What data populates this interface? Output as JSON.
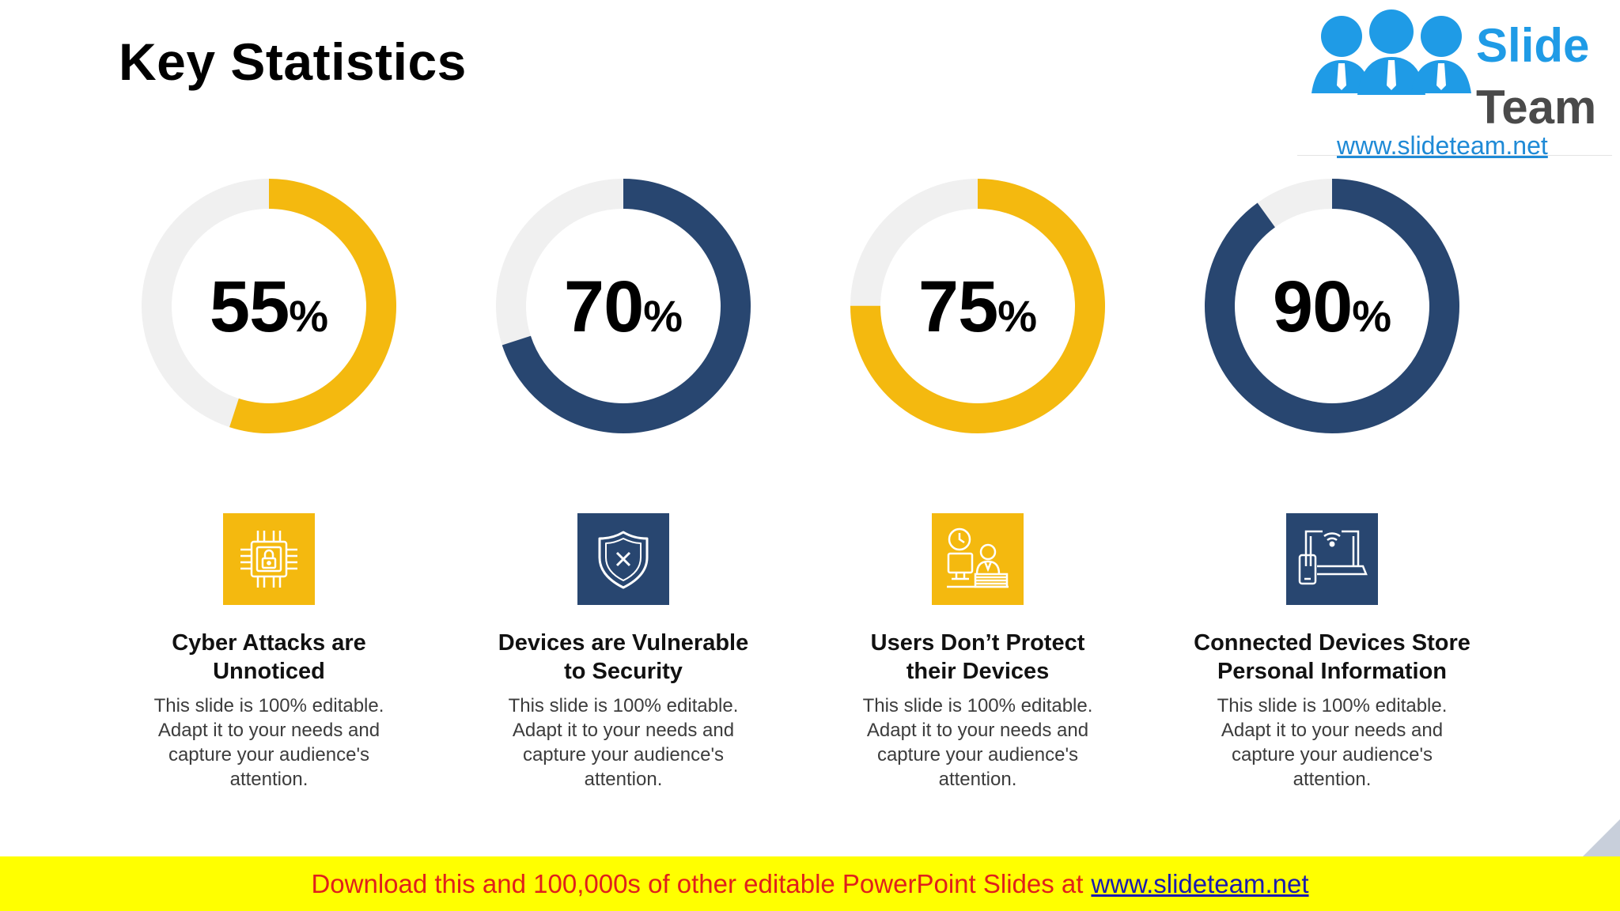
{
  "title": "Key Statistics",
  "logo": {
    "word1": "Slide",
    "word2": "Team",
    "url": "www.slideteam.net"
  },
  "colors": {
    "yellow": "#f4b90f",
    "navy": "#284670",
    "track": "#f0f0f0"
  },
  "stats": [
    {
      "value": "55",
      "percent_sign": "%",
      "fraction": 0.55,
      "color": "#f4b90f",
      "icon": "chip-lock-icon",
      "title_line1": "Cyber Attacks are",
      "title_line2": "Unnoticed",
      "desc": "This slide is 100% editable. Adapt it to your needs and capture your audience's attention."
    },
    {
      "value": "70",
      "percent_sign": "%",
      "fraction": 0.7,
      "color": "#284670",
      "icon": "shield-x-icon",
      "title_line1": "Devices are Vulnerable",
      "title_line2": "to Security",
      "desc": "This slide is 100% editable. Adapt it to your needs and capture your audience's attention."
    },
    {
      "value": "75",
      "percent_sign": "%",
      "fraction": 0.75,
      "color": "#f4b90f",
      "icon": "user-at-desk-icon",
      "title_line1": "Users Don’t Protect",
      "title_line2": "their Devices",
      "desc": "This slide is 100% editable. Adapt it to your needs and capture your audience's attention."
    },
    {
      "value": "90",
      "percent_sign": "%",
      "fraction": 0.9,
      "color": "#284670",
      "icon": "connected-devices-icon",
      "title_line1": "Connected Devices Store",
      "title_line2": "Personal Information",
      "desc": "This slide is 100% editable. Adapt it to your needs and capture your audience's attention."
    }
  ],
  "banner": {
    "text": "Download this and 100,000s of other editable PowerPoint Slides at",
    "link": "www.slideteam.net"
  }
}
